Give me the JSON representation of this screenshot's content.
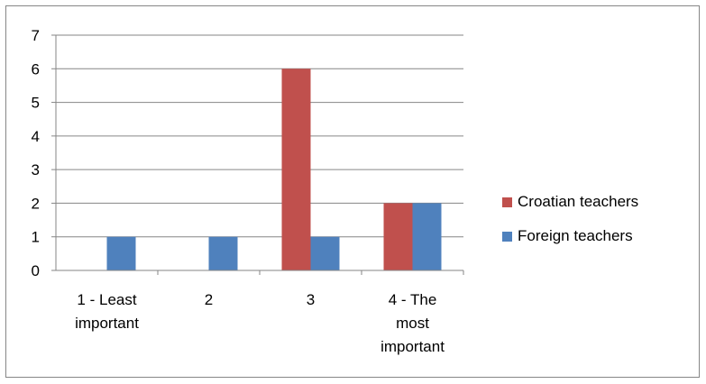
{
  "chart_data": {
    "type": "bar",
    "categories": [
      [
        "1 - Least",
        "important"
      ],
      [
        "2"
      ],
      [
        "3"
      ],
      [
        "4 - The",
        "most",
        "important"
      ]
    ],
    "series": [
      {
        "name": "Croatian teachers",
        "color": "#c0504d",
        "values": [
          0,
          0,
          6,
          2
        ]
      },
      {
        "name": "Foreign teachers",
        "color": "#4f81bd",
        "values": [
          1,
          1,
          1,
          2
        ]
      }
    ],
    "ylim": [
      0,
      7
    ],
    "yticks": [
      0,
      1,
      2,
      3,
      4,
      5,
      6,
      7
    ],
    "grid": true,
    "legend": "right"
  }
}
